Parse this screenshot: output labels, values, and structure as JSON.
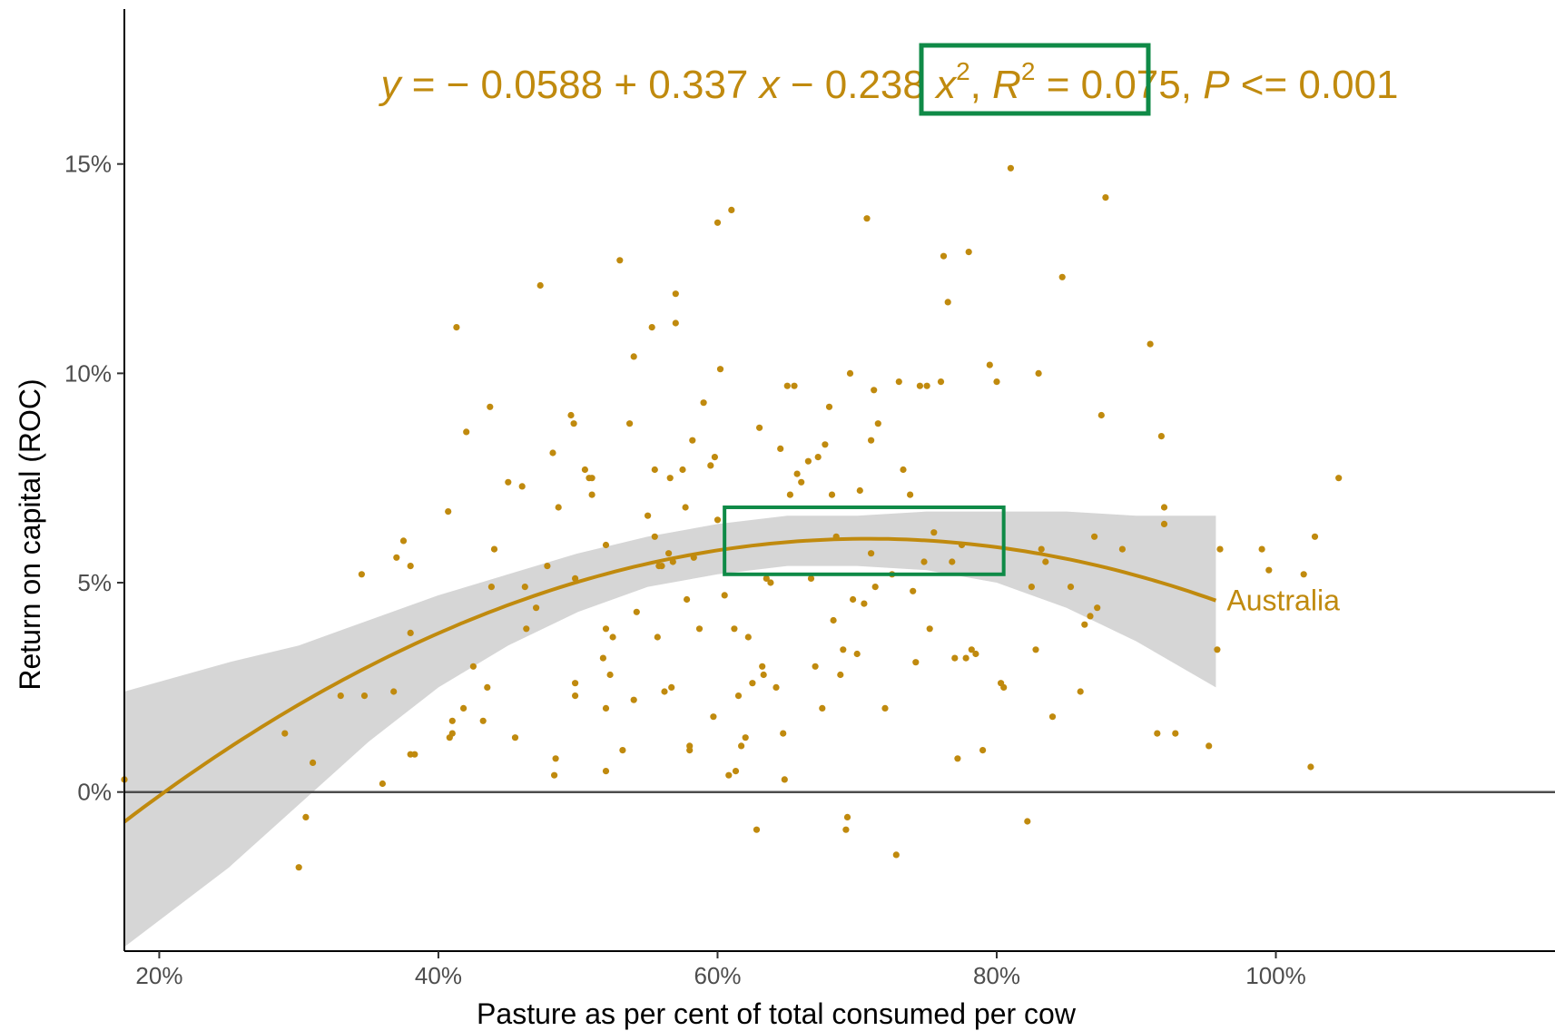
{
  "colors": {
    "series": "#c08a0e",
    "ribbon": "#d6d6d6",
    "highlight": "#0f8a47",
    "axis": "#000000",
    "zero_line": "#4d4d4d"
  },
  "chart_data": {
    "type": "scatter",
    "xlabel": "Pasture as per cent of total consumed per cow",
    "ylabel": "Return on capital (ROC)",
    "xlim": [
      0.175,
      1.2
    ],
    "ylim": [
      -0.038,
      0.187
    ],
    "x_ticks": [
      {
        "value": 0.2,
        "label": "20%"
      },
      {
        "value": 0.4,
        "label": "40%"
      },
      {
        "value": 0.6,
        "label": "60%"
      },
      {
        "value": 0.8,
        "label": "80%"
      },
      {
        "value": 1.0,
        "label": "100%"
      }
    ],
    "y_ticks": [
      {
        "value": 0.0,
        "label": "0%"
      },
      {
        "value": 0.05,
        "label": "5%"
      },
      {
        "value": 0.1,
        "label": "10%"
      },
      {
        "value": 0.15,
        "label": "15%"
      }
    ],
    "grid": false,
    "reference_line_y": 0.0,
    "equation": {
      "part1": "y",
      "part2": " = − 0.0588 + 0.337 ",
      "part3": "x",
      "part4": " − 0.238 ",
      "part5": "x",
      "part6": "2",
      "part7": ", ",
      "part8": "R",
      "part9": "2",
      "part10": " = 0.075",
      "part11": ", ",
      "part12": "P",
      "part13": " <= 0.001"
    },
    "series": [
      {
        "name": "Australia",
        "fit": {
          "intercept": -0.0588,
          "b1": 0.337,
          "b2": -0.238,
          "x_range": [
            0.175,
            0.957
          ]
        },
        "band": [
          {
            "x": 0.175,
            "lo": -0.037,
            "hi": 0.024
          },
          {
            "x": 0.25,
            "lo": -0.018,
            "hi": 0.031
          },
          {
            "x": 0.3,
            "lo": -0.003,
            "hi": 0.035
          },
          {
            "x": 0.35,
            "lo": 0.012,
            "hi": 0.041
          },
          {
            "x": 0.4,
            "lo": 0.025,
            "hi": 0.047
          },
          {
            "x": 0.45,
            "lo": 0.035,
            "hi": 0.052
          },
          {
            "x": 0.5,
            "lo": 0.043,
            "hi": 0.057
          },
          {
            "x": 0.55,
            "lo": 0.049,
            "hi": 0.061
          },
          {
            "x": 0.6,
            "lo": 0.052,
            "hi": 0.064
          },
          {
            "x": 0.65,
            "lo": 0.054,
            "hi": 0.066
          },
          {
            "x": 0.7,
            "lo": 0.054,
            "hi": 0.066
          },
          {
            "x": 0.75,
            "lo": 0.053,
            "hi": 0.067
          },
          {
            "x": 0.8,
            "lo": 0.05,
            "hi": 0.067
          },
          {
            "x": 0.85,
            "lo": 0.044,
            "hi": 0.067
          },
          {
            "x": 0.9,
            "lo": 0.036,
            "hi": 0.066
          },
          {
            "x": 0.957,
            "lo": 0.025,
            "hi": 0.066
          }
        ],
        "points": [
          [
            0.175,
            0.003
          ],
          [
            0.29,
            0.014
          ],
          [
            0.3,
            -0.018
          ],
          [
            0.305,
            -0.006
          ],
          [
            0.31,
            0.007
          ],
          [
            0.33,
            0.023
          ],
          [
            0.345,
            0.052
          ],
          [
            0.347,
            0.023
          ],
          [
            0.36,
            0.002
          ],
          [
            0.368,
            0.024
          ],
          [
            0.37,
            0.056
          ],
          [
            0.375,
            0.06
          ],
          [
            0.38,
            0.054
          ],
          [
            0.38,
            0.038
          ],
          [
            0.38,
            0.009
          ],
          [
            0.383,
            0.009
          ],
          [
            0.407,
            0.067
          ],
          [
            0.408,
            0.013
          ],
          [
            0.41,
            0.017
          ],
          [
            0.41,
            0.014
          ],
          [
            0.413,
            0.111
          ],
          [
            0.418,
            0.02
          ],
          [
            0.42,
            0.086
          ],
          [
            0.425,
            0.03
          ],
          [
            0.432,
            0.017
          ],
          [
            0.435,
            0.025
          ],
          [
            0.437,
            0.092
          ],
          [
            0.438,
            0.049
          ],
          [
            0.44,
            0.058
          ],
          [
            0.45,
            0.074
          ],
          [
            0.455,
            0.013
          ],
          [
            0.46,
            0.073
          ],
          [
            0.462,
            0.049
          ],
          [
            0.463,
            0.039
          ],
          [
            0.47,
            0.044
          ],
          [
            0.473,
            0.121
          ],
          [
            0.478,
            0.054
          ],
          [
            0.482,
            0.081
          ],
          [
            0.483,
            0.004
          ],
          [
            0.484,
            0.008
          ],
          [
            0.486,
            0.068
          ],
          [
            0.495,
            0.09
          ],
          [
            0.497,
            0.088
          ],
          [
            0.498,
            0.051
          ],
          [
            0.498,
            0.026
          ],
          [
            0.498,
            0.023
          ],
          [
            0.505,
            0.077
          ],
          [
            0.508,
            0.075
          ],
          [
            0.51,
            0.071
          ],
          [
            0.51,
            0.075
          ],
          [
            0.518,
            0.032
          ],
          [
            0.52,
            0.059
          ],
          [
            0.52,
            0.039
          ],
          [
            0.52,
            0.02
          ],
          [
            0.52,
            0.005
          ],
          [
            0.523,
            0.028
          ],
          [
            0.525,
            0.037
          ],
          [
            0.53,
            0.127
          ],
          [
            0.532,
            0.01
          ],
          [
            0.537,
            0.088
          ],
          [
            0.54,
            0.104
          ],
          [
            0.54,
            0.022
          ],
          [
            0.542,
            0.043
          ],
          [
            0.55,
            0.066
          ],
          [
            0.553,
            0.111
          ],
          [
            0.555,
            0.077
          ],
          [
            0.555,
            0.061
          ],
          [
            0.557,
            0.037
          ],
          [
            0.558,
            0.054
          ],
          [
            0.56,
            0.054
          ],
          [
            0.562,
            0.024
          ],
          [
            0.565,
            0.057
          ],
          [
            0.566,
            0.075
          ],
          [
            0.567,
            0.025
          ],
          [
            0.568,
            0.055
          ],
          [
            0.57,
            0.119
          ],
          [
            0.57,
            0.112
          ],
          [
            0.575,
            0.077
          ],
          [
            0.577,
            0.068
          ],
          [
            0.578,
            0.046
          ],
          [
            0.58,
            0.011
          ],
          [
            0.58,
            0.01
          ],
          [
            0.582,
            0.084
          ],
          [
            0.583,
            0.056
          ],
          [
            0.587,
            0.039
          ],
          [
            0.59,
            0.093
          ],
          [
            0.595,
            0.078
          ],
          [
            0.597,
            0.018
          ],
          [
            0.598,
            0.08
          ],
          [
            0.6,
            0.065
          ],
          [
            0.6,
            0.136
          ],
          [
            0.602,
            0.101
          ],
          [
            0.605,
            0.047
          ],
          [
            0.608,
            0.004
          ],
          [
            0.61,
            0.139
          ],
          [
            0.612,
            0.039
          ],
          [
            0.613,
            0.005
          ],
          [
            0.615,
            0.023
          ],
          [
            0.617,
            0.011
          ],
          [
            0.62,
            0.013
          ],
          [
            0.622,
            0.037
          ],
          [
            0.625,
            0.026
          ],
          [
            0.628,
            -0.009
          ],
          [
            0.63,
            0.087
          ],
          [
            0.632,
            0.03
          ],
          [
            0.633,
            0.028
          ],
          [
            0.635,
            0.051
          ],
          [
            0.638,
            0.05
          ],
          [
            0.642,
            0.025
          ],
          [
            0.645,
            0.082
          ],
          [
            0.647,
            0.014
          ],
          [
            0.648,
            0.003
          ],
          [
            0.65,
            0.097
          ],
          [
            0.652,
            0.071
          ],
          [
            0.655,
            0.097
          ],
          [
            0.657,
            0.076
          ],
          [
            0.66,
            0.074
          ],
          [
            0.665,
            0.079
          ],
          [
            0.667,
            0.051
          ],
          [
            0.67,
            0.03
          ],
          [
            0.672,
            0.08
          ],
          [
            0.675,
            0.02
          ],
          [
            0.677,
            0.083
          ],
          [
            0.68,
            0.092
          ],
          [
            0.682,
            0.071
          ],
          [
            0.683,
            0.041
          ],
          [
            0.685,
            0.061
          ],
          [
            0.688,
            0.028
          ],
          [
            0.69,
            0.034
          ],
          [
            0.692,
            -0.009
          ],
          [
            0.693,
            -0.006
          ],
          [
            0.695,
            0.1
          ],
          [
            0.697,
            0.046
          ],
          [
            0.7,
            0.033
          ],
          [
            0.702,
            0.072
          ],
          [
            0.705,
            0.045
          ],
          [
            0.707,
            0.137
          ],
          [
            0.71,
            0.084
          ],
          [
            0.71,
            0.057
          ],
          [
            0.712,
            0.096
          ],
          [
            0.713,
            0.049
          ],
          [
            0.715,
            0.088
          ],
          [
            0.72,
            0.02
          ],
          [
            0.725,
            0.052
          ],
          [
            0.728,
            -0.015
          ],
          [
            0.73,
            0.098
          ],
          [
            0.733,
            0.077
          ],
          [
            0.738,
            0.071
          ],
          [
            0.74,
            0.048
          ],
          [
            0.742,
            0.031
          ],
          [
            0.745,
            0.097
          ],
          [
            0.748,
            0.055
          ],
          [
            0.75,
            0.097
          ],
          [
            0.752,
            0.039
          ],
          [
            0.755,
            0.062
          ],
          [
            0.76,
            0.098
          ],
          [
            0.762,
            0.128
          ],
          [
            0.765,
            0.117
          ],
          [
            0.768,
            0.055
          ],
          [
            0.77,
            0.032
          ],
          [
            0.772,
            0.008
          ],
          [
            0.775,
            0.059
          ],
          [
            0.778,
            0.032
          ],
          [
            0.78,
            0.129
          ],
          [
            0.782,
            0.034
          ],
          [
            0.785,
            0.033
          ],
          [
            0.79,
            0.01
          ],
          [
            0.795,
            0.102
          ],
          [
            0.8,
            0.098
          ],
          [
            0.803,
            0.026
          ],
          [
            0.805,
            0.025
          ],
          [
            0.81,
            0.149
          ],
          [
            0.822,
            -0.007
          ],
          [
            0.825,
            0.049
          ],
          [
            0.828,
            0.034
          ],
          [
            0.83,
            0.1
          ],
          [
            0.832,
            0.058
          ],
          [
            0.835,
            0.055
          ],
          [
            0.84,
            0.018
          ],
          [
            0.847,
            0.123
          ],
          [
            0.853,
            0.049
          ],
          [
            0.86,
            0.024
          ],
          [
            0.863,
            0.04
          ],
          [
            0.867,
            0.042
          ],
          [
            0.87,
            0.061
          ],
          [
            0.872,
            0.044
          ],
          [
            0.875,
            0.09
          ],
          [
            0.878,
            0.142
          ],
          [
            0.89,
            0.058
          ],
          [
            0.91,
            0.107
          ],
          [
            0.915,
            0.014
          ],
          [
            0.918,
            0.085
          ],
          [
            0.92,
            0.068
          ],
          [
            0.92,
            0.064
          ],
          [
            0.928,
            0.014
          ],
          [
            0.952,
            0.011
          ],
          [
            0.958,
            0.034
          ],
          [
            0.96,
            0.058
          ],
          [
            0.99,
            0.058
          ],
          [
            0.995,
            0.053
          ],
          [
            1.02,
            0.052
          ],
          [
            1.025,
            0.006
          ],
          [
            1.028,
            0.061
          ],
          [
            1.045,
            0.075
          ]
        ]
      }
    ]
  }
}
